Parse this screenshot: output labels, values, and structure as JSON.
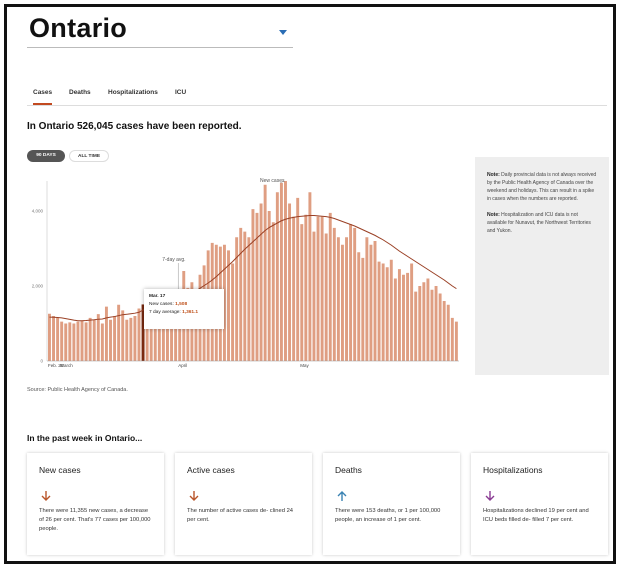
{
  "header": {
    "title": "Ontario"
  },
  "tabs": [
    {
      "label": "Cases",
      "active": true
    },
    {
      "label": "Deaths"
    },
    {
      "label": "Hospitalizations"
    },
    {
      "label": "ICU"
    }
  ],
  "summary": {
    "heading": "In Ontario 526,045 cases have been reported."
  },
  "range_toggle": {
    "options": [
      "90 DAYS",
      "ALL TIME"
    ],
    "selected": "90 DAYS"
  },
  "chart_data": {
    "type": "bar",
    "annotations": [
      "New cases",
      "7-day avg."
    ],
    "x_tick_labels": [
      "Feb. 20",
      "March",
      "April",
      "May"
    ],
    "y_tick_labels": [
      "4,000",
      "2,000",
      "0"
    ],
    "ylim": [
      0,
      4800
    ],
    "values": [
      1260,
      1200,
      1150,
      1050,
      1000,
      1030,
      1000,
      1050,
      1080,
      1030,
      1150,
      1100,
      1250,
      1000,
      1450,
      1100,
      1200,
      1500,
      1350,
      1100,
      1150,
      1200,
      1400,
      1508,
      1450,
      1650,
      1500,
      1350,
      1800,
      1450,
      1700,
      1650,
      1750,
      2400,
      1950,
      2100,
      1850,
      2300,
      2550,
      2950,
      3150,
      3100,
      3050,
      3100,
      2950,
      2600,
      3300,
      3550,
      3450,
      3300,
      4050,
      3950,
      4200,
      4700,
      4000,
      3700,
      4500,
      4750,
      4800,
      4200,
      3850,
      4350,
      3650,
      3900,
      4500,
      3450,
      3850,
      3850,
      3400,
      3950,
      3550,
      3300,
      3100,
      3300,
      3650,
      3550,
      2900,
      2750,
      3300,
      3100,
      3200,
      2650,
      2600,
      2500,
      2700,
      2200,
      2450,
      2300,
      2350,
      2600,
      1850,
      2000,
      2100,
      2200,
      1900,
      2000,
      1800,
      1600,
      1500,
      1150,
      1050
    ],
    "average": [
      1170,
      1165,
      1160,
      1150,
      1130,
      1110,
      1090,
      1075,
      1075,
      1080,
      1090,
      1100,
      1115,
      1120,
      1150,
      1170,
      1185,
      1210,
      1235,
      1245,
      1260,
      1275,
      1300,
      1361,
      1380,
      1420,
      1450,
      1470,
      1520,
      1550,
      1580,
      1610,
      1640,
      1700,
      1760,
      1820,
      1870,
      1940,
      2010,
      2080,
      2160,
      2250,
      2350,
      2450,
      2550,
      2650,
      2760,
      2870,
      2980,
      3080,
      3180,
      3280,
      3380,
      3480,
      3560,
      3620,
      3680,
      3740,
      3780,
      3810,
      3830,
      3850,
      3860,
      3870,
      3880,
      3880,
      3870,
      3860,
      3850,
      3830,
      3800,
      3760,
      3720,
      3680,
      3640,
      3600,
      3550,
      3500,
      3450,
      3400,
      3350,
      3290,
      3230,
      3160,
      3090,
      3010,
      2930,
      2860,
      2790,
      2720,
      2650,
      2580,
      2510,
      2440,
      2370,
      2300,
      2230,
      2160,
      2080,
      2000,
      1930
    ],
    "highlight": {
      "date": "Mar. 17",
      "new_cases": "1,508",
      "average": "1,361.1",
      "new_cases_label": "New cases:",
      "average_label": "7 day average:"
    }
  },
  "note": {
    "p1_label": "Note:",
    "p1_text": "Daily provincial data is not always received by the Public Health Agency of Canada over the weekend and holidays. This can result in a spike in cases when the numbers are reported.",
    "p2_label": "Note:",
    "p2_text": "Hospitalization and ICU data is not available for Nunavut, the Northwest Territories and Yukon."
  },
  "source": "Source: Public Health Agency of Canada.",
  "week": {
    "heading": "In the past week in Ontario...",
    "cards": [
      {
        "title": "New cases",
        "icon": "arrow-down-icon",
        "color": "#b9562b",
        "text": "There were 11,355 new cases, a decrease of 26 per cent. That's 77 cases per 100,000 people."
      },
      {
        "title": "Active cases",
        "icon": "arrow-down-icon",
        "color": "#b9562b",
        "text": "The number of active cases de- clined 24 per cent."
      },
      {
        "title": "Deaths",
        "icon": "arrow-up-icon",
        "color": "#3a83b3",
        "text": "There were 153 deaths, or 1 per 100,000 people, an increase of 1 per cent."
      },
      {
        "title": "Hospitalizations",
        "icon": "arrow-down-icon",
        "color": "#8a3b93",
        "text": "Hospitalizations declined 19 per cent and ICU beds filled de- filled 7 per cent."
      }
    ]
  },
  "colors": {
    "bar": "#df9e82",
    "bar_highlight": "#7a2a10",
    "average_line": "#9a4025",
    "accent": "#c24a20"
  }
}
